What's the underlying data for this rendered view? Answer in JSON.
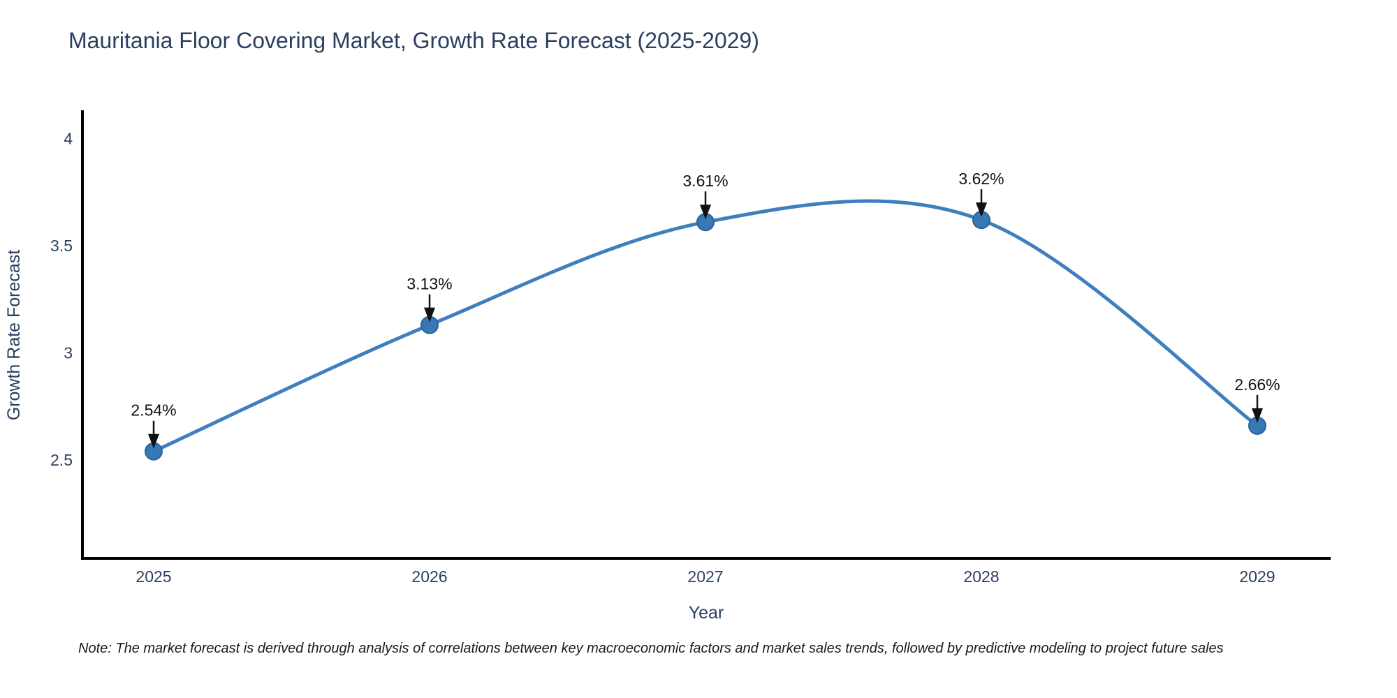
{
  "note": "Note: The market forecast is derived through analysis of correlations between key macroeconomic factors and market sales trends, followed by predictive modeling to project future sales",
  "chart_data": {
    "type": "line",
    "title": "Mauritania Floor Covering Market, Growth Rate Forecast (2025-2029)",
    "x": [
      2025,
      2026,
      2027,
      2028,
      2029
    ],
    "categories": [
      "2025",
      "2026",
      "2027",
      "2028",
      "2029"
    ],
    "values": [
      2.54,
      3.13,
      3.61,
      3.62,
      2.66
    ],
    "point_labels": [
      "2.54%",
      "3.13%",
      "3.61%",
      "3.62%",
      "2.66%"
    ],
    "xlabel": "Year",
    "ylabel": "Growth Rate Forecast",
    "yticks": [
      2.5,
      3,
      3.5,
      4
    ],
    "ytick_labels": [
      "2.5",
      "3",
      "3.5",
      "4"
    ],
    "ylim": [
      2.04,
      4.13
    ],
    "xlim": [
      2024.74,
      2029.27
    ],
    "line_shape": "spline",
    "grid": false,
    "legend": "none",
    "colors": {
      "line": "#3f7fbf",
      "marker": "#3878b4",
      "marker_stroke": "#2b6299",
      "axis": "#000000",
      "tick_text": "#2a3f5f",
      "annotation": "#111111",
      "background": "#ffffff"
    }
  }
}
